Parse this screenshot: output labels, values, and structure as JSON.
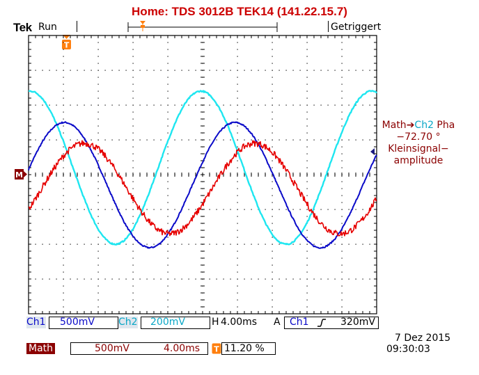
{
  "header": {
    "title": "Home:  TDS 3012B  TEK14  (141.22.15.7)"
  },
  "status": {
    "brand": "Tek",
    "acq_state": "Run",
    "trigger_state": "Getriggert"
  },
  "readout": {
    "math_measurement": {
      "source_label": "Math",
      "arrow": "➔",
      "target_label": "Ch2",
      "suffix": " Pha",
      "value": "−72.70 °",
      "name_line1": "Kleinsignal−",
      "name_line2": "amplitude"
    }
  },
  "channels": {
    "ch1": {
      "label": "Ch1",
      "scale": "500mV",
      "color": "#0a0ac8"
    },
    "ch2": {
      "label": "Ch2",
      "scale": "200mV",
      "color": "#1ee6f0"
    },
    "math": {
      "label": "Math",
      "scale": "500mV",
      "timebase": "4.00ms",
      "color": "#e60000"
    }
  },
  "horizontal": {
    "label": "H",
    "scale": "4.00ms"
  },
  "trigger": {
    "mode": "A",
    "source": "Ch1",
    "slope_icon": "rising-edge-icon",
    "level": "320mV"
  },
  "trigger_position": {
    "label": "T",
    "percent": "11.20 %"
  },
  "markers": {
    "math_ground": "M",
    "trigger_point": "T"
  },
  "datetime": {
    "date": "7 Dez  2015",
    "time": "09:30:03"
  },
  "colors": {
    "grid": "#000000",
    "background": "#ffffff",
    "header": "#cc0000",
    "math_badge": "#8b0000",
    "marker": "#ff7f0e"
  },
  "chart_data": {
    "type": "line",
    "grid": true,
    "x_divisions": 10,
    "y_divisions": 8,
    "series": [
      {
        "name": "Ch1",
        "amplitude_div": 1.8,
        "offset_div": -0.3,
        "period_div": 4.9,
        "phase_div": 1.03,
        "noise": 0.02
      },
      {
        "name": "Ch2",
        "amplitude_div": 2.2,
        "offset_div": 0.2,
        "period_div": 4.9,
        "phase_div": 0.05,
        "noise": 0.02
      },
      {
        "name": "Math",
        "amplitude_div": 1.3,
        "offset_div": -0.4,
        "period_div": 4.9,
        "phase_div": 1.6,
        "noise": 0.09
      }
    ]
  }
}
